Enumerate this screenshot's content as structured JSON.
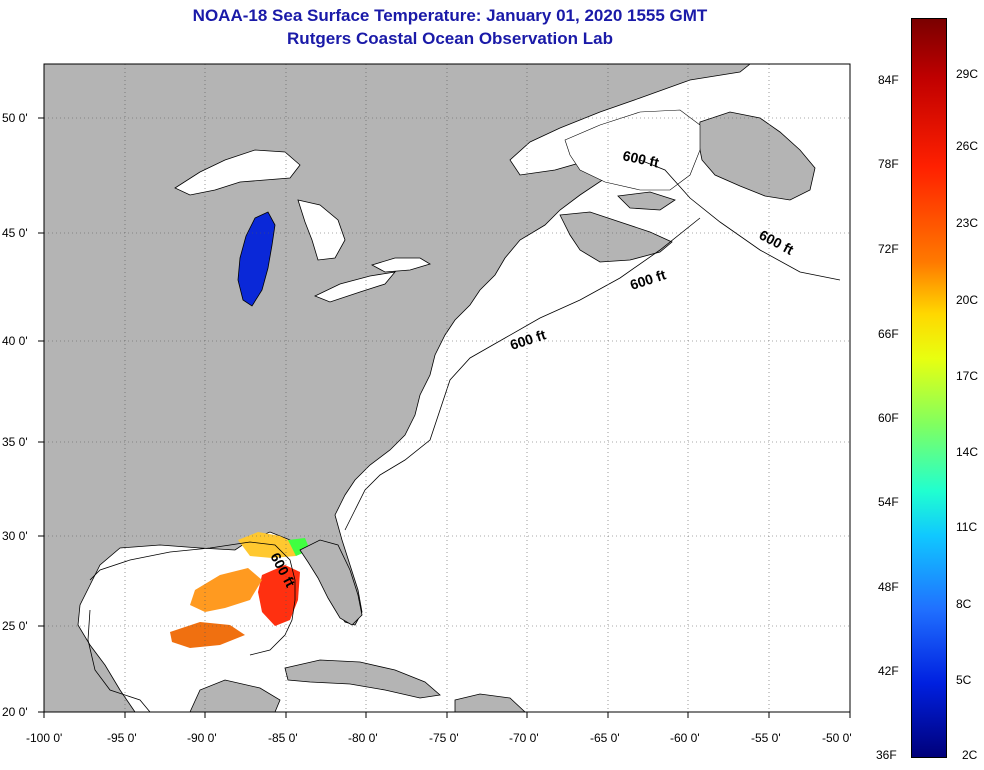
{
  "title": {
    "line1": "NOAA-18 Sea Surface Temperature:  January 01, 2020 1555 GMT",
    "line2": "Rutgers Coastal Ocean Observation Lab"
  },
  "colors": {
    "title": "#1a1aa8",
    "land": "#b4b4b4",
    "ocean": "#ffffff",
    "lake_sst": "#0a28d8"
  },
  "axes": {
    "lon_labels": [
      "-100 0'",
      "-95 0'",
      "-90 0'",
      "-85 0'",
      "-80 0'",
      "-75 0'",
      "-70 0'",
      "-65 0'",
      "-60 0'",
      "-55 0'",
      "-50 0'"
    ],
    "lat_labels": [
      "50 0'",
      "45 0'",
      "40 0'",
      "35 0'",
      "30 0'",
      "25 0'",
      "20 0'"
    ]
  },
  "contour_labels": [
    "600 ft",
    "600 ft",
    "600 ft",
    "600 ft",
    "600 ft"
  ],
  "colorbar": {
    "fahrenheit": [
      "84F",
      "78F",
      "72F",
      "66F",
      "60F",
      "54F",
      "48F",
      "42F",
      "36F"
    ],
    "celsius": [
      "29C",
      "26C",
      "23C",
      "20C",
      "17C",
      "14C",
      "11C",
      "8C",
      "5C",
      "2C"
    ]
  }
}
